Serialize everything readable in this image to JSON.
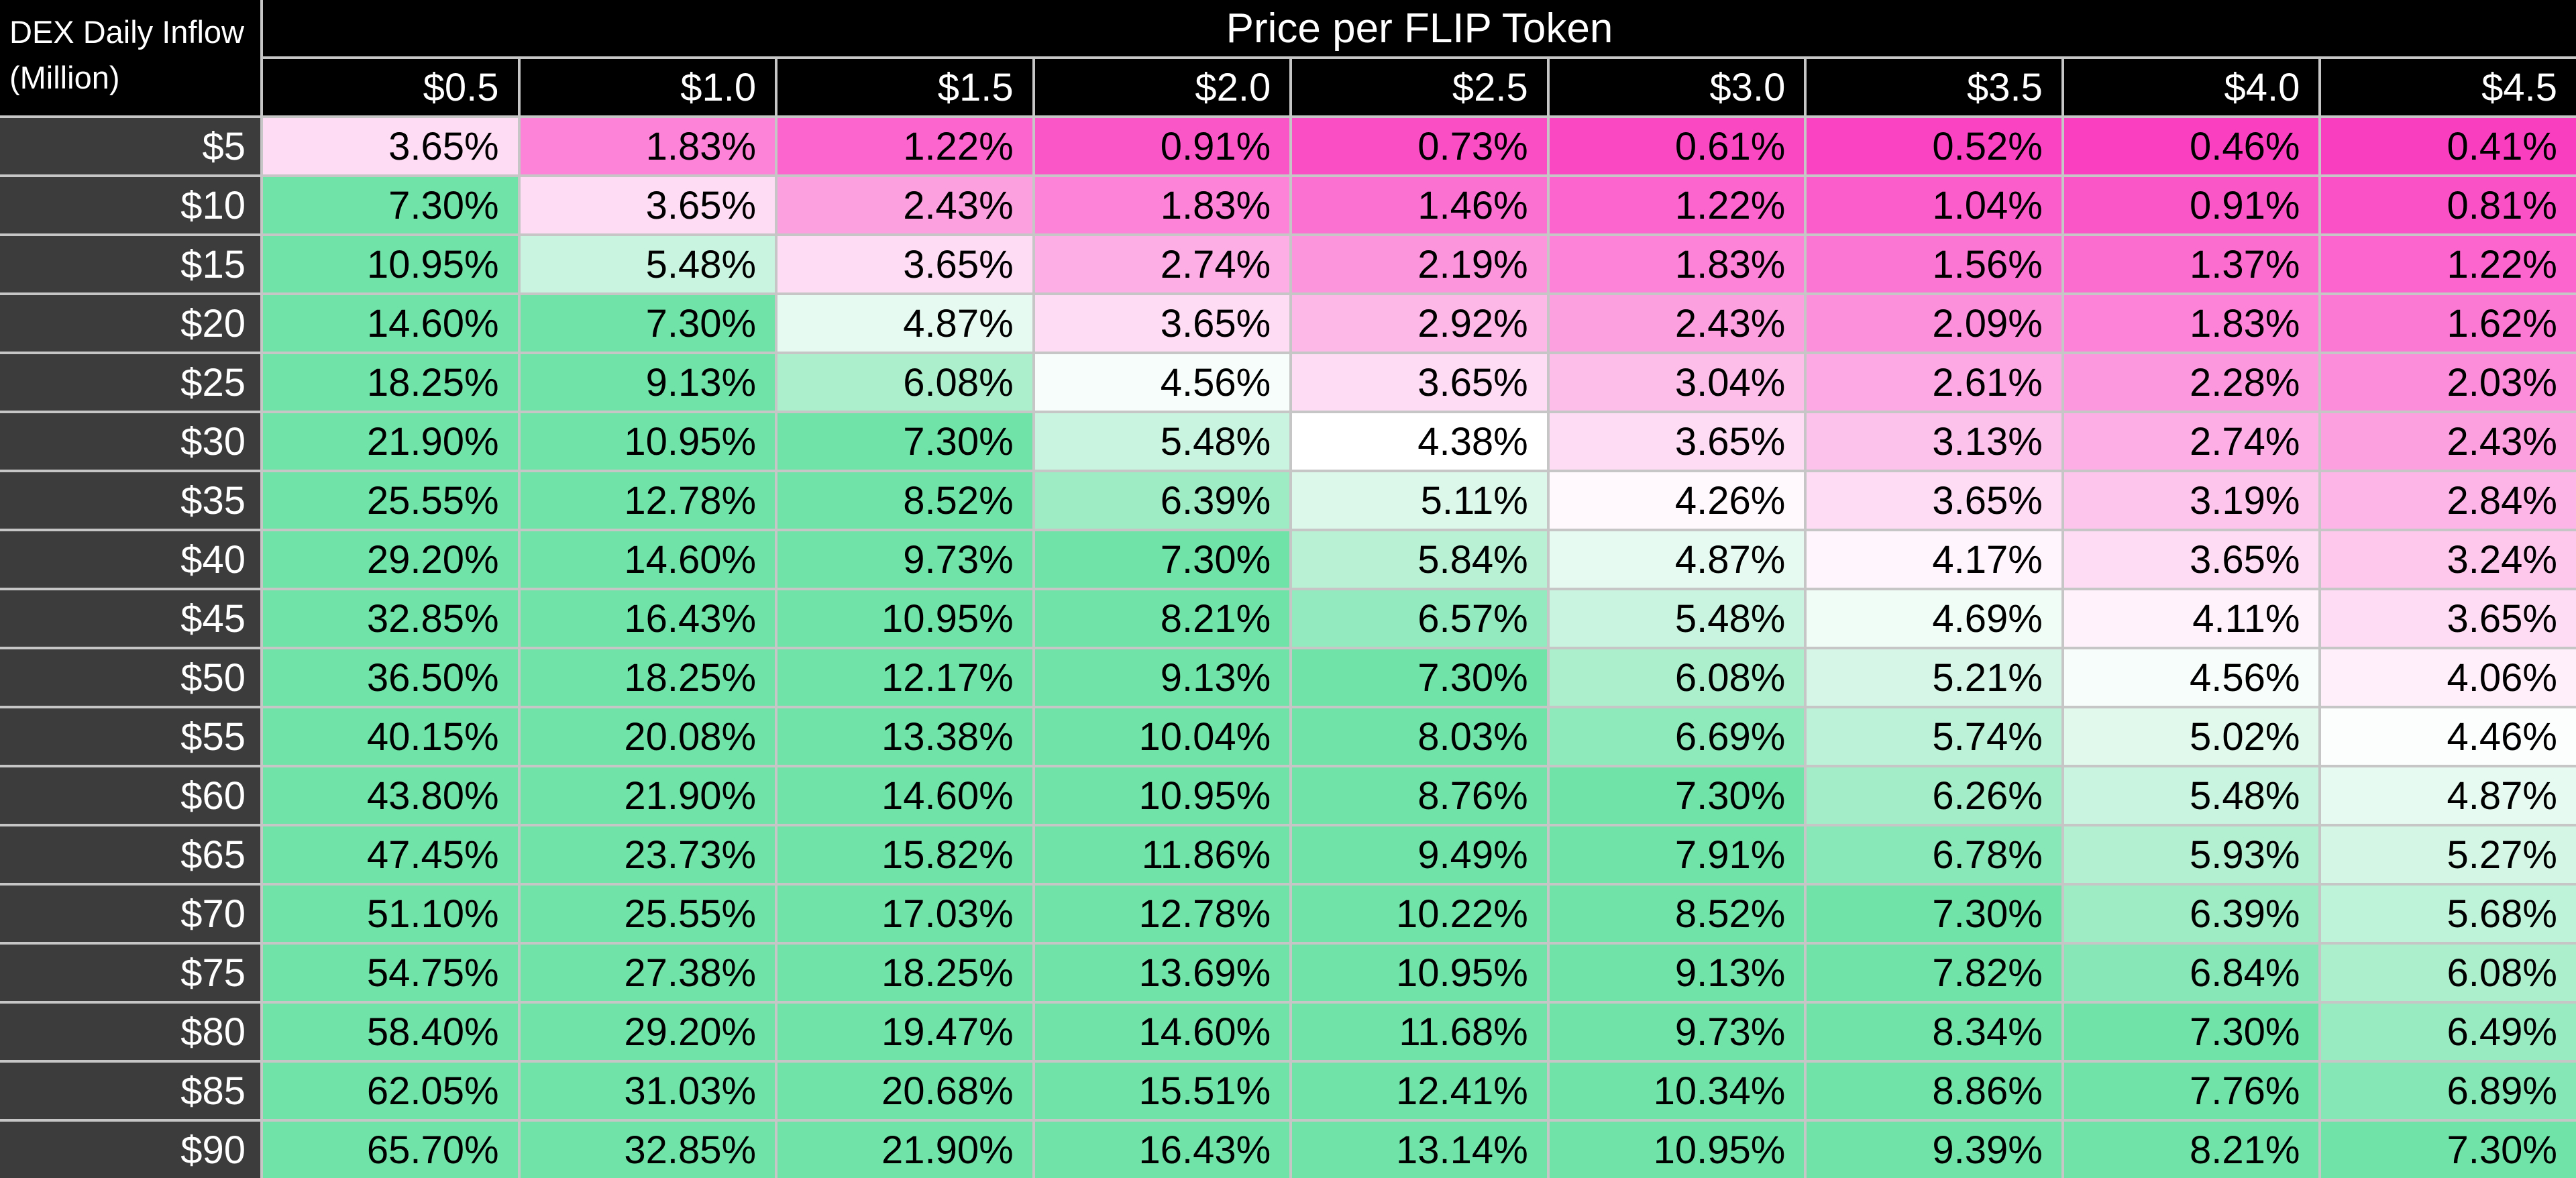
{
  "corner": {
    "line1": "DEX Daily Inflow",
    "line2": "(Million)"
  },
  "colors": {
    "header_bg": "#000000",
    "row_header_bg": "#3C3C3C",
    "border": "#C6C6C6",
    "cell_text": "#000000",
    "header_text": "#FFFFFF",
    "heat_low": "#FA3EC0",
    "heat_mid": "#FFFFFF",
    "heat_high": "#70E3A9"
  },
  "chart_data": {
    "type": "heatmap",
    "title": "Price per FLIP Token",
    "xlabel": "Price per FLIP Token",
    "ylabel": "DEX Daily Inflow (Million)",
    "value_suffix": "%",
    "value_decimals": 2,
    "columns": [
      "$0.5",
      "$1.0",
      "$1.5",
      "$2.0",
      "$2.5",
      "$3.0",
      "$3.5",
      "$4.0",
      "$4.5"
    ],
    "rows": [
      "$5",
      "$10",
      "$15",
      "$20",
      "$25",
      "$30",
      "$35",
      "$40",
      "$45",
      "$50",
      "$55",
      "$60",
      "$65",
      "$70",
      "$75",
      "$80",
      "$85",
      "$90"
    ],
    "values": [
      [
        3.65,
        1.83,
        1.22,
        0.91,
        0.73,
        0.61,
        0.52,
        0.46,
        0.41
      ],
      [
        7.3,
        3.65,
        2.43,
        1.83,
        1.46,
        1.22,
        1.04,
        0.91,
        0.81
      ],
      [
        10.95,
        5.48,
        3.65,
        2.74,
        2.19,
        1.83,
        1.56,
        1.37,
        1.22
      ],
      [
        14.6,
        7.3,
        4.87,
        3.65,
        2.92,
        2.43,
        2.09,
        1.83,
        1.62
      ],
      [
        18.25,
        9.13,
        6.08,
        4.56,
        3.65,
        3.04,
        2.61,
        2.28,
        2.03
      ],
      [
        21.9,
        10.95,
        7.3,
        5.48,
        4.38,
        3.65,
        3.13,
        2.74,
        2.43
      ],
      [
        25.55,
        12.78,
        8.52,
        6.39,
        5.11,
        4.26,
        3.65,
        3.19,
        2.84
      ],
      [
        29.2,
        14.6,
        9.73,
        7.3,
        5.84,
        4.87,
        4.17,
        3.65,
        3.24
      ],
      [
        32.85,
        16.43,
        10.95,
        8.21,
        6.57,
        5.48,
        4.69,
        4.11,
        3.65
      ],
      [
        36.5,
        18.25,
        12.17,
        9.13,
        7.3,
        6.08,
        5.21,
        4.56,
        4.06
      ],
      [
        40.15,
        20.08,
        13.38,
        10.04,
        8.03,
        6.69,
        5.74,
        5.02,
        4.46
      ],
      [
        43.8,
        21.9,
        14.6,
        10.95,
        8.76,
        7.3,
        6.26,
        5.48,
        4.87
      ],
      [
        47.45,
        23.73,
        15.82,
        11.86,
        9.49,
        7.91,
        6.78,
        5.93,
        5.27
      ],
      [
        51.1,
        25.55,
        17.03,
        12.78,
        10.22,
        8.52,
        7.3,
        6.39,
        5.68
      ],
      [
        54.75,
        27.38,
        18.25,
        13.69,
        10.95,
        9.13,
        7.82,
        6.84,
        6.08
      ],
      [
        58.4,
        29.2,
        19.47,
        14.6,
        11.68,
        9.73,
        8.34,
        7.3,
        6.49
      ],
      [
        62.05,
        31.03,
        20.68,
        15.51,
        12.41,
        10.34,
        8.86,
        7.76,
        6.89
      ],
      [
        65.7,
        32.85,
        21.9,
        16.43,
        13.14,
        10.95,
        9.39,
        8.21,
        7.3
      ]
    ],
    "color_scale": {
      "min_value": 0.41,
      "mid_value": 4.38,
      "max_value": 7.3,
      "min_color": "#FA3EC0",
      "mid_color": "#FFFFFF",
      "max_color": "#70E3A9"
    },
    "legend_position": "none",
    "grid": true
  }
}
